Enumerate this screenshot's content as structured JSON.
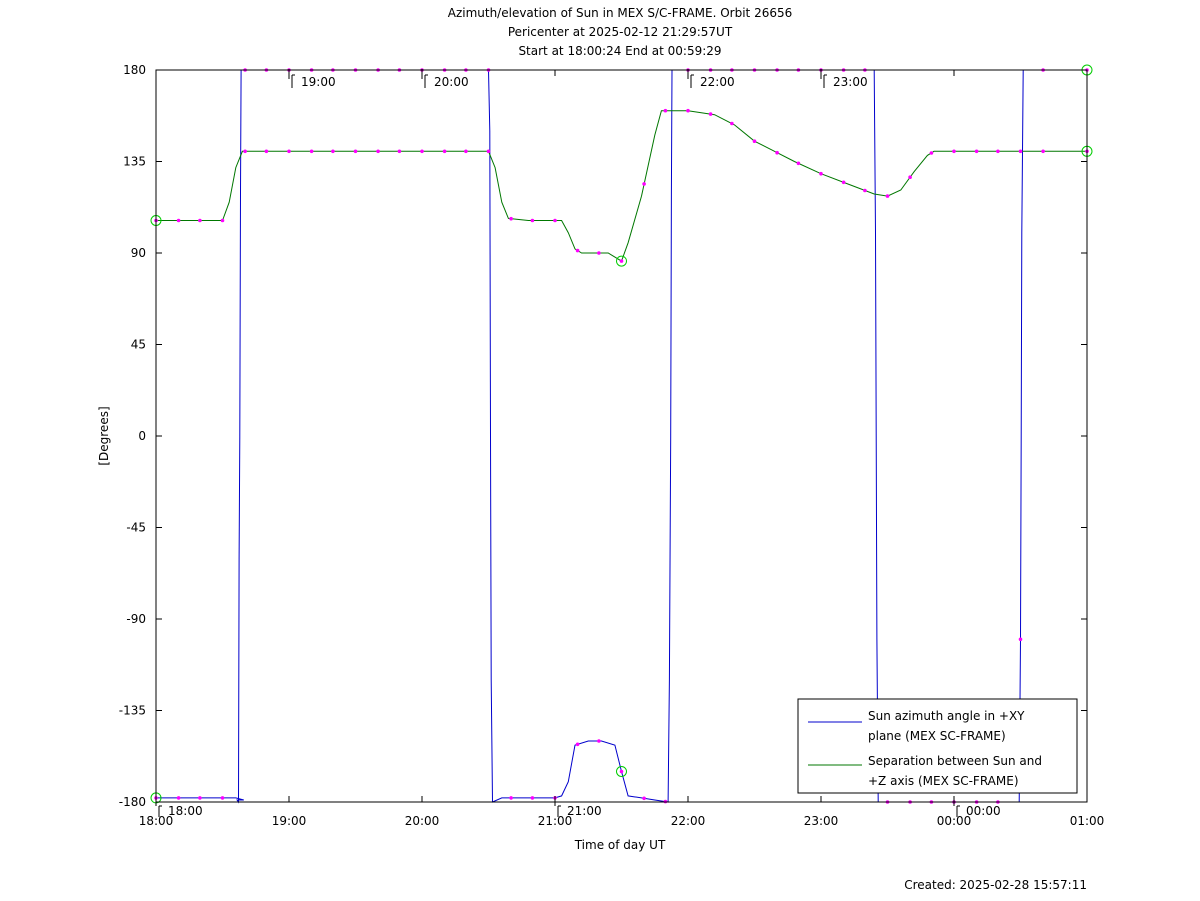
{
  "chart_data": {
    "type": "line",
    "title_lines": [
      "Azimuth/elevation of Sun in MEX S/C-FRAME.  Orbit 26656",
      "Pericenter at 2025-02-12 21:29:57UT",
      "Start at 18:00:24 End at 00:59:29"
    ],
    "xlabel": "Time of day UT",
    "ylabel": "[Degrees]",
    "xlim": [
      0,
      7
    ],
    "ylim": [
      -180,
      180
    ],
    "x_tick_labels": [
      "18:00",
      "19:00",
      "20:00",
      "21:00",
      "22:00",
      "23:00",
      "00:00",
      "01:00"
    ],
    "y_ticks": [
      180,
      135,
      90,
      45,
      0,
      -45,
      -90,
      -135,
      -180
    ],
    "grid": false,
    "legend_position": "bottom-right",
    "hour_markers_top": [
      "19:00",
      "20:00",
      "22:00",
      "23:00"
    ],
    "hour_markers_bottom": [
      "18:00",
      "21:00",
      "00:00"
    ],
    "created_label": "Created: 2025-02-28 15:57:11",
    "series": [
      {
        "name": "Sun azimuth angle in +XY plane (MEX SC-FRAME)",
        "legend_lines": [
          "Sun azimuth angle in +XY",
          "plane (MEX SC-FRAME)"
        ],
        "color": "#0000cc",
        "points": [
          [
            0.0,
            -178
          ],
          [
            0.33,
            -178
          ],
          [
            0.5,
            -178
          ],
          [
            0.6,
            -178
          ],
          [
            0.66,
            -179
          ],
          [
            0.61,
            -179
          ],
          [
            0.62,
            -180
          ],
          [
            0.625,
            -60
          ],
          [
            0.63,
            0
          ],
          [
            0.635,
            120
          ],
          [
            0.64,
            180
          ],
          [
            0.7,
            180
          ],
          [
            1.0,
            180
          ],
          [
            1.5,
            180
          ],
          [
            2.0,
            180
          ],
          [
            2.5,
            180
          ],
          [
            2.51,
            150
          ],
          [
            2.515,
            0
          ],
          [
            2.52,
            -120
          ],
          [
            2.53,
            -180
          ],
          [
            2.6,
            -178
          ],
          [
            2.8,
            -178
          ],
          [
            3.0,
            -178
          ],
          [
            3.05,
            -177
          ],
          [
            3.1,
            -170
          ],
          [
            3.15,
            -152
          ],
          [
            3.25,
            -150
          ],
          [
            3.35,
            -150
          ],
          [
            3.45,
            -152
          ],
          [
            3.5,
            -165
          ],
          [
            3.55,
            -177
          ],
          [
            3.65,
            -178
          ],
          [
            3.75,
            -179
          ],
          [
            3.85,
            -180
          ],
          [
            3.86,
            -120
          ],
          [
            3.87,
            0
          ],
          [
            3.875,
            120
          ],
          [
            3.88,
            180
          ],
          [
            4.0,
            180
          ],
          [
            4.5,
            180
          ],
          [
            5.0,
            180
          ],
          [
            5.4,
            180
          ],
          [
            5.41,
            100
          ],
          [
            5.415,
            0
          ],
          [
            5.42,
            -100
          ],
          [
            5.43,
            -180
          ],
          [
            6.0,
            -180
          ],
          [
            6.49,
            -180
          ],
          [
            6.5,
            -100
          ],
          [
            6.505,
            0
          ],
          [
            6.51,
            100
          ],
          [
            6.52,
            180
          ],
          [
            6.7,
            180
          ],
          [
            7.0,
            180
          ]
        ]
      },
      {
        "name": "Separation between Sun and +Z axis (MEX SC-FRAME)",
        "legend_lines": [
          "Separation between Sun and",
          "+Z axis (MEX SC-FRAME)"
        ],
        "color": "#007700",
        "points": [
          [
            0.0,
            106
          ],
          [
            0.5,
            106
          ],
          [
            0.55,
            115
          ],
          [
            0.6,
            132
          ],
          [
            0.65,
            140
          ],
          [
            1.0,
            140
          ],
          [
            1.5,
            140
          ],
          [
            2.0,
            140
          ],
          [
            2.5,
            140
          ],
          [
            2.55,
            132
          ],
          [
            2.6,
            115
          ],
          [
            2.65,
            107
          ],
          [
            2.8,
            106
          ],
          [
            3.05,
            106
          ],
          [
            3.1,
            100
          ],
          [
            3.15,
            92
          ],
          [
            3.2,
            90
          ],
          [
            3.4,
            90
          ],
          [
            3.5,
            86
          ],
          [
            3.55,
            95
          ],
          [
            3.65,
            118
          ],
          [
            3.75,
            148
          ],
          [
            3.8,
            160
          ],
          [
            3.9,
            160
          ],
          [
            4.0,
            160
          ],
          [
            4.2,
            158
          ],
          [
            4.35,
            153
          ],
          [
            4.5,
            145
          ],
          [
            4.65,
            140
          ],
          [
            4.8,
            135
          ],
          [
            5.0,
            129
          ],
          [
            5.2,
            124
          ],
          [
            5.4,
            119
          ],
          [
            5.5,
            118
          ],
          [
            5.6,
            121
          ],
          [
            5.7,
            130
          ],
          [
            5.8,
            138
          ],
          [
            5.85,
            140
          ],
          [
            6.0,
            140
          ],
          [
            6.5,
            140
          ],
          [
            7.0,
            140
          ]
        ]
      }
    ],
    "sample_marker_color": "#ff00ff",
    "endpoint_marker_color": "#00cc00",
    "markers_times": [
      0.0,
      0.17,
      0.33,
      0.5,
      0.67,
      0.83,
      1.0,
      1.17,
      1.33,
      1.5,
      1.67,
      1.83,
      2.0,
      2.17,
      2.33,
      2.5,
      2.67,
      2.83,
      3.0,
      3.17,
      3.33,
      3.5,
      3.67,
      3.83,
      4.0,
      4.17,
      4.33,
      4.5,
      4.67,
      4.83,
      5.0,
      5.17,
      5.33,
      5.5,
      5.67,
      5.83,
      6.0,
      6.17,
      6.33,
      6.5,
      6.67,
      7.0
    ]
  }
}
